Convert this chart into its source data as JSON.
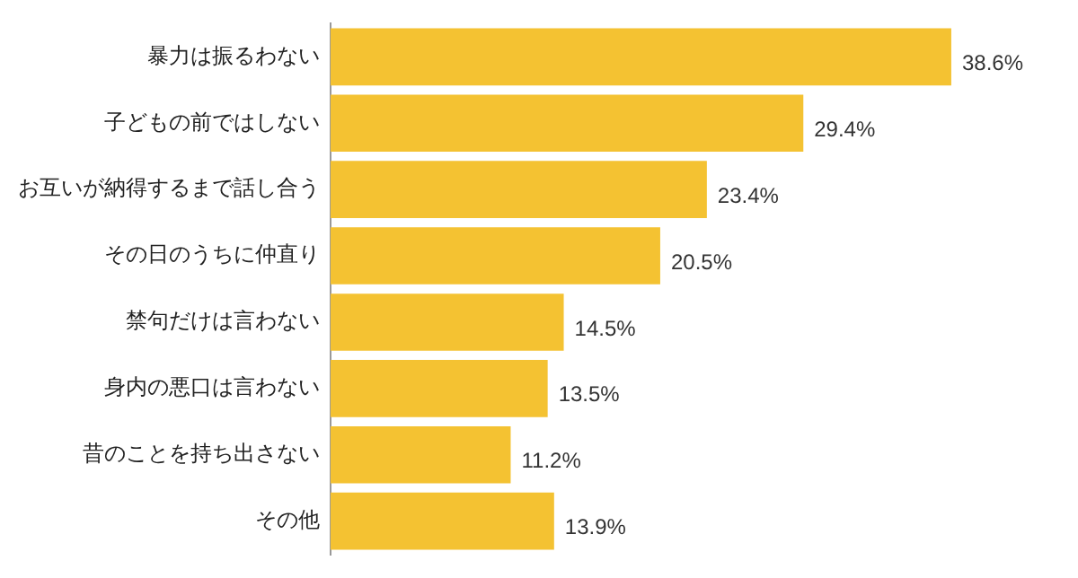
{
  "chart_data": {
    "type": "bar",
    "orientation": "horizontal",
    "categories": [
      "暴力は振るわない",
      "子どもの前ではしない",
      "お互いが納得するまで話し合う",
      "その日のうちに仲直り",
      "禁句だけは言わない",
      "身内の悪口は言わない",
      "昔のことを持ち出さない",
      "その他"
    ],
    "values": [
      38.6,
      29.4,
      23.4,
      20.5,
      14.5,
      13.5,
      11.2,
      13.9
    ],
    "value_labels": [
      "38.6%",
      "29.4%",
      "23.4%",
      "20.5%",
      "14.5%",
      "13.5%",
      "11.2%",
      "13.9%"
    ],
    "color": "#f4c232"
  }
}
